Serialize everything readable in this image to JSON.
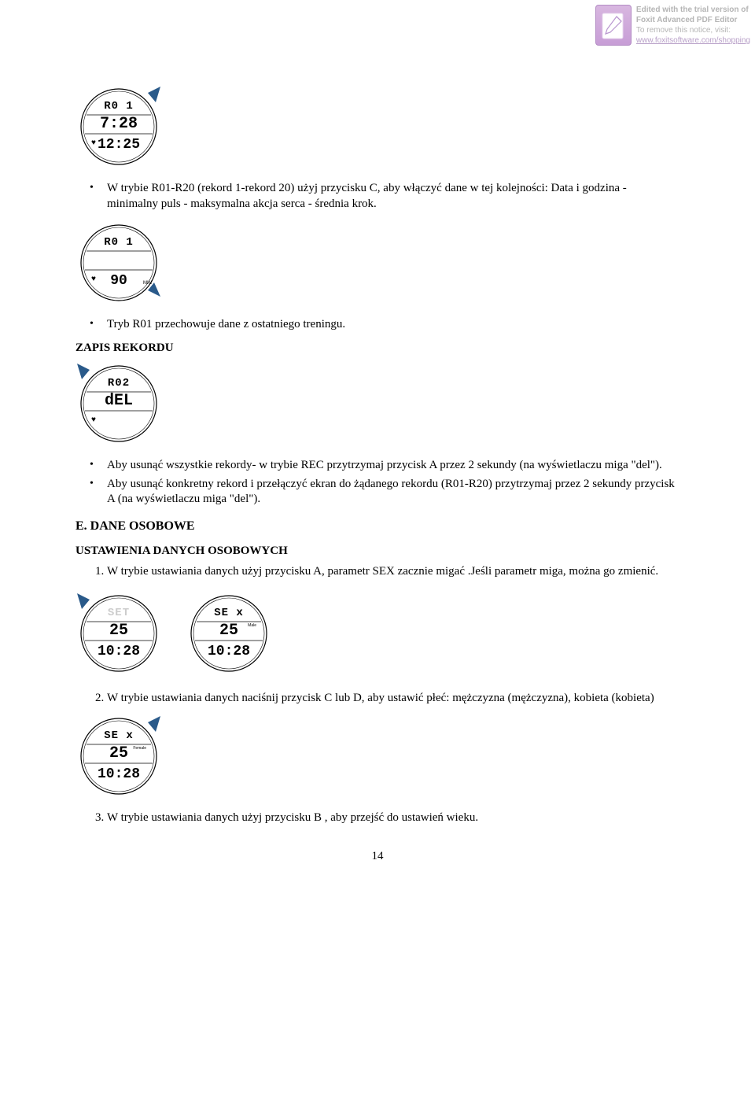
{
  "watermark": {
    "line1": "Edited with the trial version of",
    "line2": "Foxit Advanced PDF Editor",
    "line3": "To remove this notice, visit:",
    "line4": "www.foxitsoftware.com/shopping",
    "icon_bg": "#cda8d9",
    "text_color": "#b5b5b5"
  },
  "watch1": {
    "line1": "R0 1",
    "line2": "7:28",
    "line3": "12:25",
    "heart": true,
    "pointer": "top-right"
  },
  "bullet1": "W trybie R01-R20 (rekord 1-rekord 20) użyj przycisku C, aby włączyć dane w tej kolejności: Data i godzina - minimalny puls - maksymalna akcja serca - średnia krok.",
  "watch2": {
    "line1": "R0 1",
    "line2": "",
    "line3": "90",
    "unit": "MIN",
    "heart": true,
    "pointer": "bottom-right"
  },
  "bullet2": "Tryb R01  przechowuje dane  z ostatniego treningu.",
  "heading_zapis": "ZAPIS REKORDU",
  "watch3": {
    "line1": "R02",
    "line2": "dEL",
    "line3": "",
    "heart": true,
    "pointer": "top-left"
  },
  "bullet3a": "Aby usunąć wszystkie rekordy- w trybie REC przytrzymaj przycisk A przez 2 sekundy  (na wyświetlaczu miga \"del\").",
  "bullet3b": "Aby usunąć konkretny rekord i przełączyć ekran do żądanego rekordu (R01-R20)  przytrzymaj  przez 2 sekundy przycisk A (na wyświetlaczu miga \"del\").",
  "heading_e": "E.   DANE OSOBOWE",
  "heading_ustawienia": "USTAWIENIA DANYCH OSOBOWYCH",
  "num1": "W trybie ustawiania danych użyj przycisku A, parametr SEX zacznie migać .Jeśli parametr miga,  można go zmienić.",
  "watch4a": {
    "line1": "SET",
    "line2": "25",
    "line3": "10:28",
    "heart": false,
    "pointer": "top-left",
    "dim_top": true
  },
  "watch4b": {
    "line1": "SE x",
    "line2": "25",
    "line3": "10:28",
    "small_label": "Male",
    "heart": false,
    "pointer": "none"
  },
  "num2": "W trybie ustawiania danych naciśnij przycisk C lub D, aby ustawić płeć: mężczyzna (mężczyzna), kobieta (kobieta)",
  "watch5": {
    "line1": "SE x",
    "line2": "25",
    "line3": "10:28",
    "small_label": "Female",
    "heart": false,
    "pointer": "top-right"
  },
  "num3": "W trybie ustawiania danych użyj przycisku B , aby przejść do ustawień wieku.",
  "page_number": "14",
  "colors": {
    "page_bg": "#ffffff",
    "text": "#000000",
    "pointer_fill": "#2a5a8a",
    "lcd_dim": "#cccccc"
  }
}
